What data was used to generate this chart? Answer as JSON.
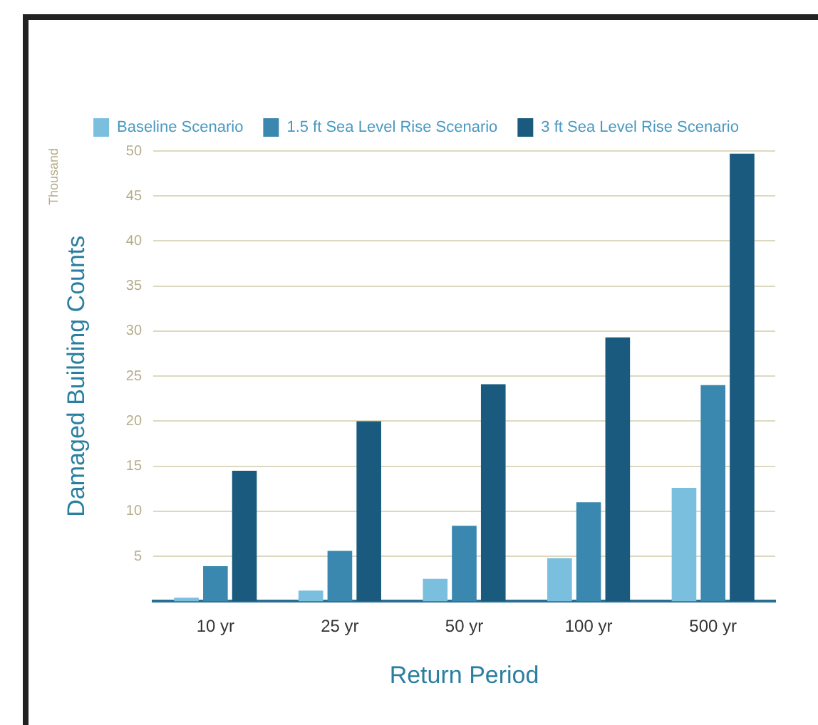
{
  "chart_data": {
    "type": "bar",
    "xlabel": "Return Period",
    "ylabel": "Damaged Building Counts",
    "annotations": [
      "Thousand"
    ],
    "categories": [
      "10 yr",
      "25 yr",
      "50 yr",
      "100 yr",
      "500 yr"
    ],
    "series": [
      {
        "name": "Baseline Scenario",
        "color": "#7bbfdf",
        "values": [
          0.4,
          1.2,
          2.5,
          4.8,
          12.6
        ]
      },
      {
        "name": "1.5 ft Sea Level Rise Scenario",
        "color": "#3a88b0",
        "values": [
          3.9,
          5.6,
          8.4,
          11,
          24
        ]
      },
      {
        "name": "3 ft Sea Level Rise Scenario",
        "color": "#1a5a7e",
        "values": [
          14.5,
          20,
          24.1,
          29.3,
          49.7
        ]
      }
    ],
    "ylim": [
      0,
      50
    ],
    "yticks": [
      5,
      10,
      15,
      20,
      25,
      30,
      35,
      40,
      45,
      50
    ],
    "grid": "y",
    "legend": "top"
  }
}
